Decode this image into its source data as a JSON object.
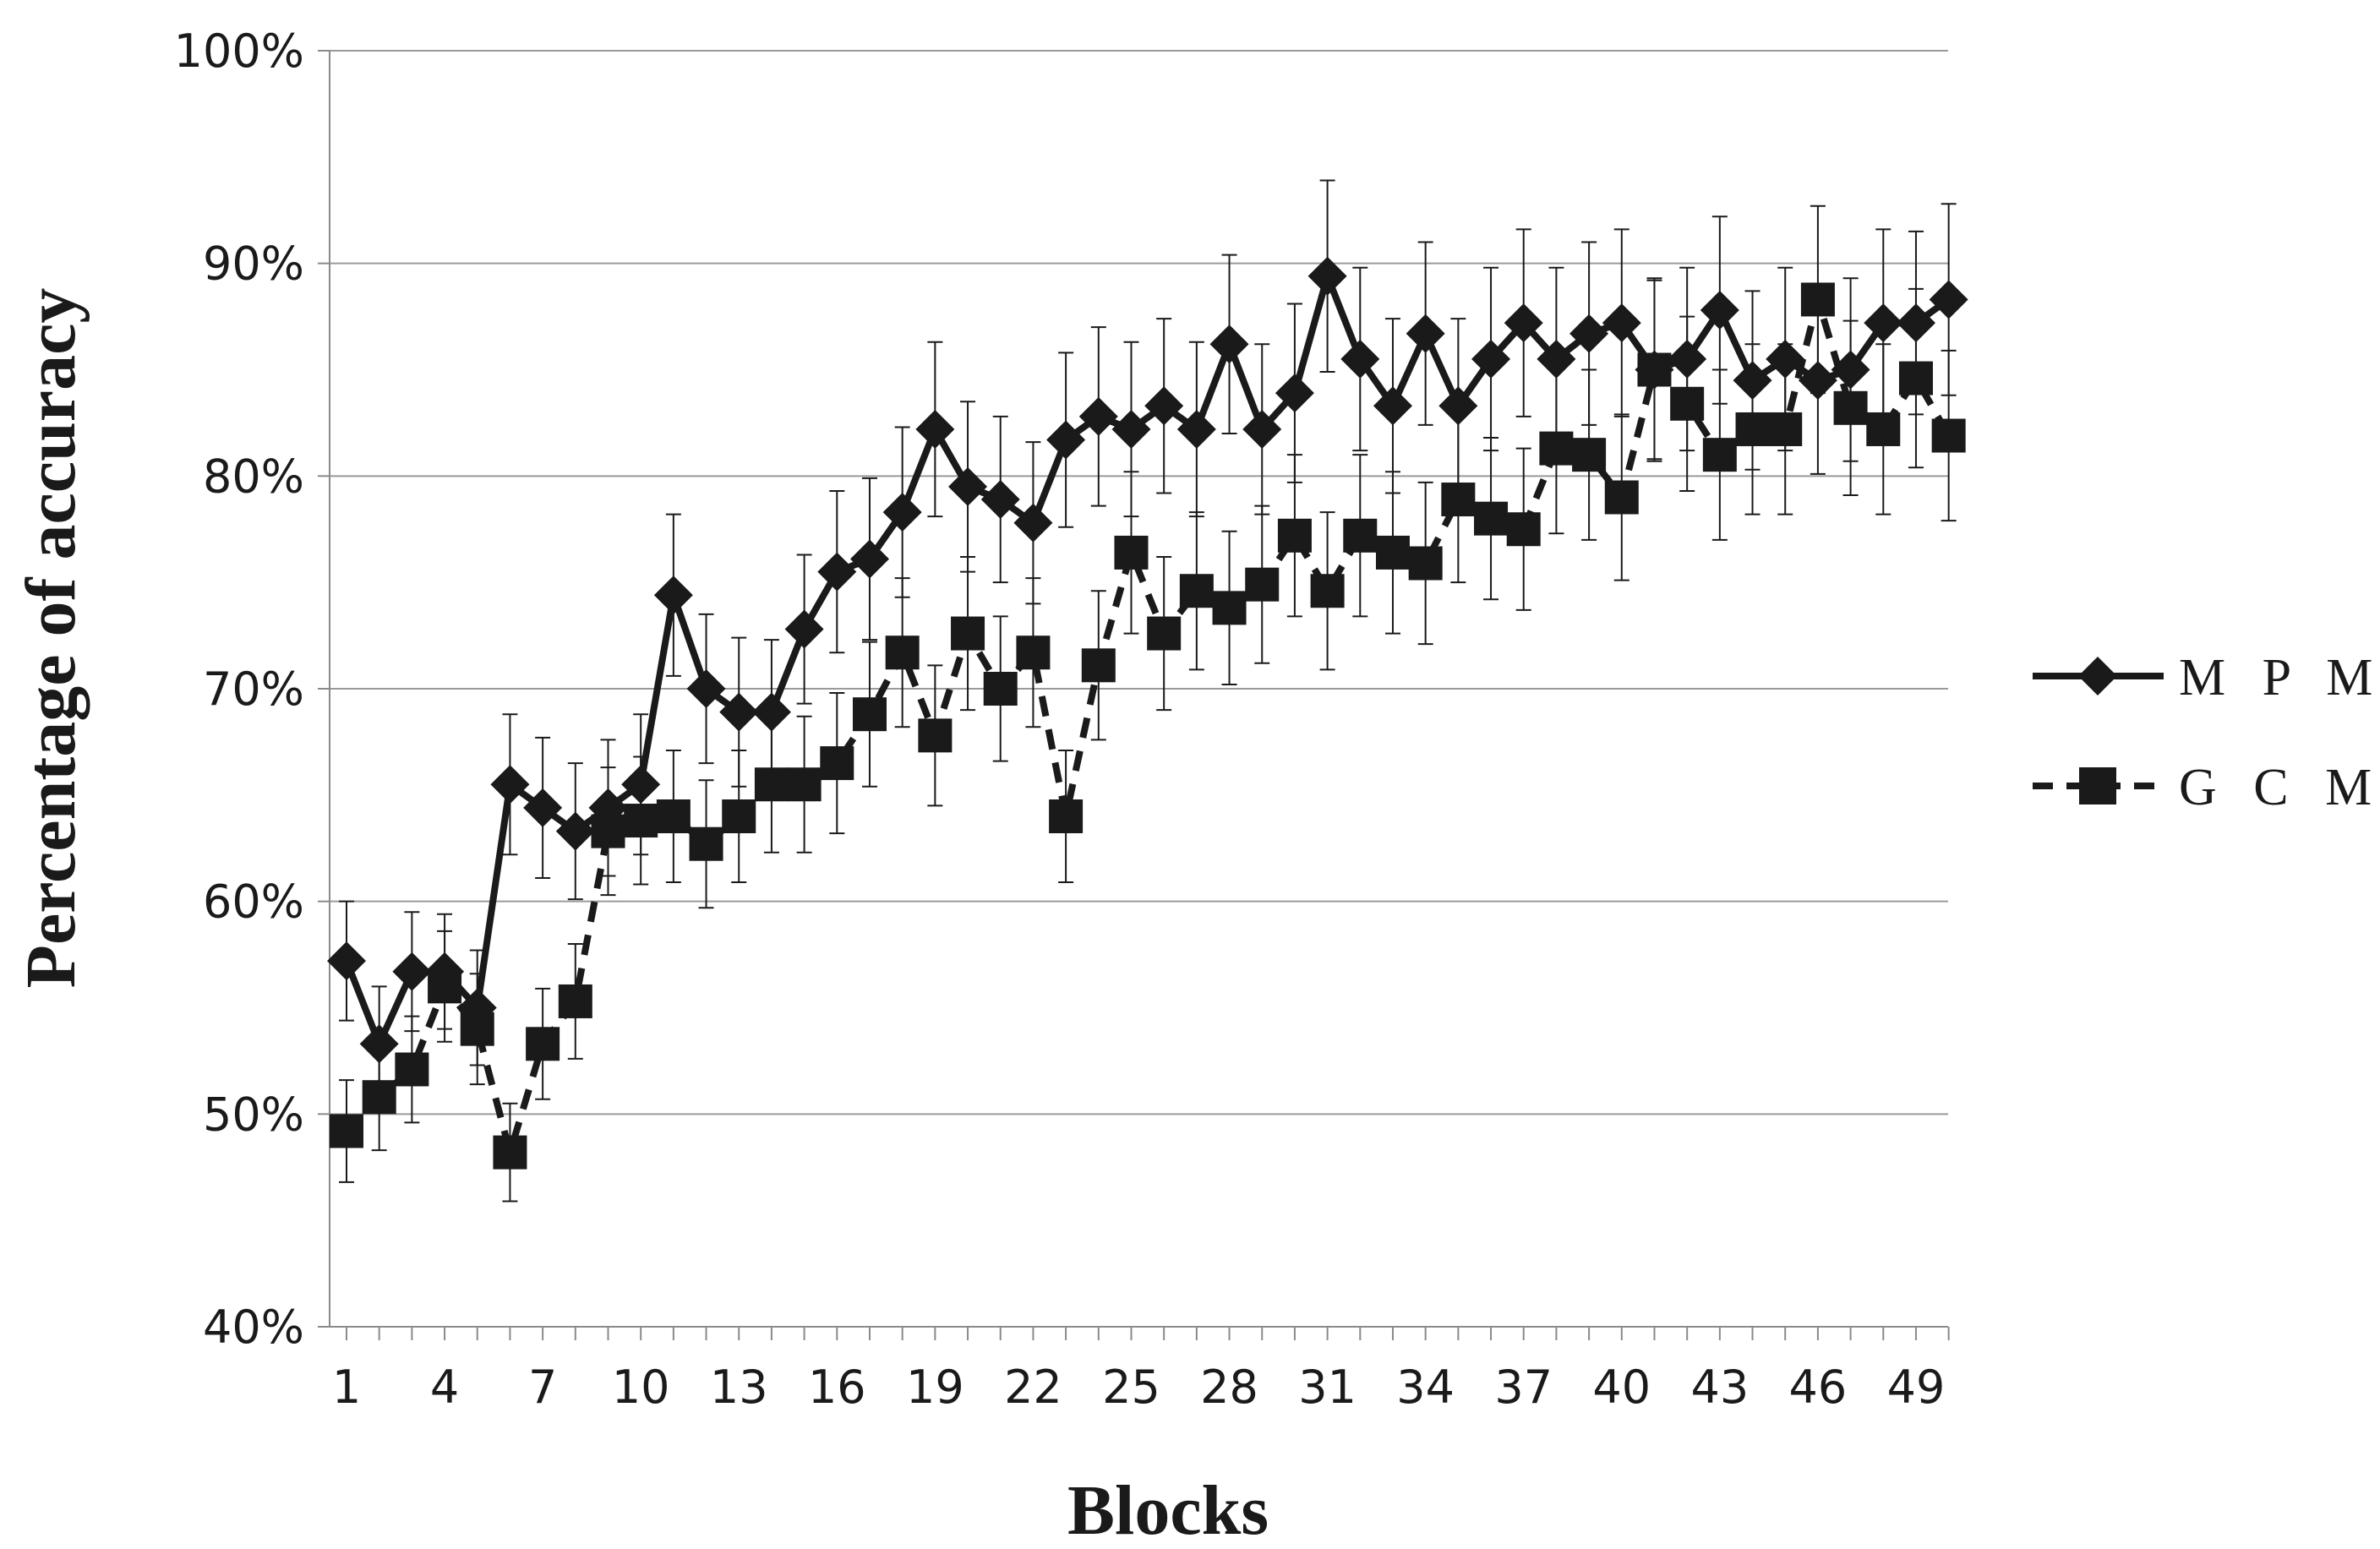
{
  "chart_data": {
    "type": "line",
    "xlabel": "Blocks",
    "ylabel": "Percentage of accuracy",
    "ylim": [
      40,
      100
    ],
    "xlim": [
      1,
      50
    ],
    "grid": "horizontal",
    "legend_position": "right",
    "y_ticks": [
      "40%",
      "50%",
      "60%",
      "70%",
      "80%",
      "90%",
      "100%"
    ],
    "x_ticks": [
      "1",
      "4",
      "7",
      "10",
      "13",
      "16",
      "19",
      "22",
      "25",
      "28",
      "31",
      "34",
      "37",
      "40",
      "43",
      "46",
      "49"
    ],
    "categories": [
      1,
      2,
      3,
      4,
      5,
      6,
      7,
      8,
      9,
      10,
      11,
      12,
      13,
      14,
      15,
      16,
      17,
      18,
      19,
      20,
      21,
      22,
      23,
      24,
      25,
      26,
      27,
      28,
      29,
      30,
      31,
      32,
      33,
      34,
      35,
      36,
      37,
      38,
      39,
      40,
      41,
      42,
      43,
      44,
      45,
      46,
      47,
      48,
      49,
      50
    ],
    "series": [
      {
        "name": "M P M",
        "line_style": "solid",
        "marker": "diamond",
        "color": "#1a1a1a",
        "values": [
          57.2,
          53.3,
          56.7,
          56.7,
          55.0,
          65.5,
          64.4,
          63.3,
          64.4,
          65.5,
          74.4,
          70.0,
          68.9,
          68.9,
          72.8,
          75.5,
          76.1,
          78.3,
          82.2,
          79.5,
          78.9,
          77.8,
          81.7,
          82.8,
          82.2,
          83.3,
          82.2,
          86.2,
          82.2,
          83.9,
          89.4,
          85.5,
          83.3,
          86.7,
          83.3,
          85.5,
          87.2,
          85.5,
          86.7,
          87.2,
          85.0,
          85.5,
          87.8,
          84.5,
          85.5,
          84.5,
          85.0,
          87.2,
          87.2,
          88.3
        ],
        "errors": [
          2.8,
          2.7,
          2.8,
          2.7,
          2.7,
          3.3,
          3.3,
          3.2,
          3.2,
          3.3,
          3.8,
          3.5,
          3.5,
          3.4,
          3.5,
          3.8,
          3.8,
          4.0,
          4.1,
          4.0,
          3.9,
          3.8,
          4.1,
          4.2,
          4.1,
          4.1,
          4.1,
          4.2,
          4.0,
          4.2,
          4.5,
          4.3,
          4.1,
          4.3,
          4.1,
          4.3,
          4.4,
          4.3,
          4.3,
          4.4,
          4.3,
          4.3,
          4.4,
          4.2,
          4.3,
          4.4,
          4.3,
          4.4,
          4.3,
          4.5
        ]
      },
      {
        "name": "G C M",
        "line_style": "dashed",
        "marker": "square",
        "color": "#1a1a1a",
        "values": [
          49.2,
          50.8,
          52.1,
          56.0,
          54.0,
          48.2,
          53.3,
          55.3,
          63.3,
          63.8,
          64.0,
          62.7,
          64.0,
          65.5,
          65.5,
          66.5,
          68.8,
          71.7,
          67.8,
          72.6,
          70.0,
          71.7,
          64.0,
          71.1,
          76.4,
          72.6,
          74.6,
          73.8,
          74.9,
          77.2,
          74.6,
          77.2,
          76.4,
          75.9,
          78.9,
          78.0,
          77.5,
          81.3,
          81.0,
          79.0,
          85.0,
          83.4,
          81.0,
          82.2,
          82.2,
          88.3,
          83.2,
          82.2,
          84.6,
          81.9
        ],
        "errors": [
          2.4,
          2.5,
          2.5,
          2.6,
          2.6,
          2.3,
          2.6,
          2.7,
          3.0,
          3.0,
          3.1,
          3.0,
          3.1,
          3.2,
          3.2,
          3.3,
          3.4,
          3.5,
          3.3,
          3.6,
          3.4,
          3.5,
          3.1,
          3.5,
          3.8,
          3.6,
          3.7,
          3.6,
          3.7,
          3.8,
          3.7,
          3.8,
          3.8,
          3.8,
          3.9,
          3.8,
          3.8,
          4.0,
          4.0,
          3.9,
          4.2,
          4.1,
          4.0,
          4.0,
          4.0,
          4.4,
          4.1,
          4.0,
          4.2,
          4.0
        ]
      }
    ]
  }
}
